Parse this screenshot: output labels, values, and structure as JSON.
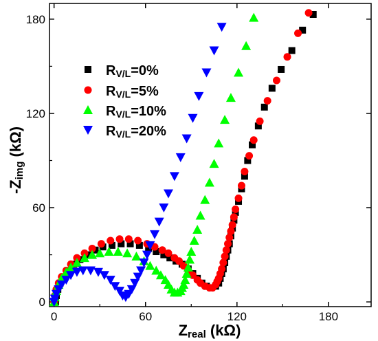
{
  "chart_data": {
    "type": "scatter",
    "x_axis": {
      "label_main": "Z",
      "label_sub": "real",
      "label_unit": " (kΩ)",
      "ticks": [
        "0",
        "60",
        "120",
        "180"
      ],
      "tick_values": [
        0,
        60,
        120,
        180
      ],
      "range": [
        -3,
        208
      ]
    },
    "y_axis": {
      "label_main": "-Z",
      "label_sub": "img",
      "label_unit": " (kΩ)",
      "ticks": [
        "0",
        "60",
        "120",
        "180"
      ],
      "tick_values": [
        0,
        60,
        120,
        180
      ],
      "range": [
        -3,
        190
      ]
    },
    "grid": false,
    "legend_position": "top-left",
    "series": [
      {
        "name_main": "R",
        "name_sub": "V/L",
        "name_rest": "=0%",
        "marker": "square",
        "color": "#000000",
        "points": [
          [
            1,
            0
          ],
          [
            1.5,
            4
          ],
          [
            2.5,
            8
          ],
          [
            4,
            12
          ],
          [
            6,
            16
          ],
          [
            9,
            20
          ],
          [
            13,
            24
          ],
          [
            17,
            27
          ],
          [
            22,
            30
          ],
          [
            27,
            33
          ],
          [
            32,
            35
          ],
          [
            38,
            36
          ],
          [
            44,
            37
          ],
          [
            50,
            37
          ],
          [
            56,
            36
          ],
          [
            62,
            34
          ],
          [
            67,
            32
          ],
          [
            72,
            30
          ],
          [
            76,
            28
          ],
          [
            80,
            26
          ],
          [
            84,
            24
          ],
          [
            88,
            21
          ],
          [
            91,
            18
          ],
          [
            94,
            15
          ],
          [
            97,
            12
          ],
          [
            100,
            10
          ],
          [
            103,
            9
          ],
          [
            106,
            10
          ],
          [
            108,
            12
          ],
          [
            109,
            15
          ],
          [
            110,
            18
          ],
          [
            111,
            21
          ],
          [
            112,
            25
          ],
          [
            113,
            29
          ],
          [
            114,
            33
          ],
          [
            115,
            37
          ],
          [
            116,
            42
          ],
          [
            117,
            47
          ],
          [
            118,
            52
          ],
          [
            119,
            57
          ],
          [
            121,
            64
          ],
          [
            123,
            72
          ],
          [
            125,
            80
          ],
          [
            127,
            90
          ],
          [
            130,
            100
          ],
          [
            134,
            112
          ],
          [
            138,
            124
          ],
          [
            143,
            136
          ],
          [
            149,
            148
          ],
          [
            156,
            160
          ],
          [
            163,
            173
          ],
          [
            170,
            183
          ]
        ]
      },
      {
        "name_main": "R",
        "name_sub": "V/L",
        "name_rest": "=5%",
        "marker": "circle",
        "color": "#ff0000",
        "points": [
          [
            0,
            0
          ],
          [
            0.5,
            4
          ],
          [
            1.5,
            8
          ],
          [
            3,
            12
          ],
          [
            5,
            16
          ],
          [
            8,
            20
          ],
          [
            11,
            24
          ],
          [
            15,
            28
          ],
          [
            20,
            31
          ],
          [
            25,
            34
          ],
          [
            31,
            37
          ],
          [
            37,
            39
          ],
          [
            43,
            40
          ],
          [
            49,
            40
          ],
          [
            55,
            39
          ],
          [
            61,
            37
          ],
          [
            66,
            35
          ],
          [
            71,
            33
          ],
          [
            75,
            31
          ],
          [
            79,
            28
          ],
          [
            82,
            26
          ],
          [
            85,
            23
          ],
          [
            88,
            20
          ],
          [
            91,
            17
          ],
          [
            94,
            14
          ],
          [
            96,
            12
          ],
          [
            99,
            10
          ],
          [
            102,
            9
          ],
          [
            104,
            9
          ],
          [
            106,
            11
          ],
          [
            107,
            13
          ],
          [
            108,
            15
          ],
          [
            109,
            18
          ],
          [
            110,
            21
          ],
          [
            111,
            25
          ],
          [
            112,
            29
          ],
          [
            113,
            33
          ],
          [
            114,
            37
          ],
          [
            115,
            41
          ],
          [
            116,
            45
          ],
          [
            117,
            49
          ],
          [
            118,
            54
          ],
          [
            119,
            59
          ],
          [
            121,
            66
          ],
          [
            123,
            74
          ],
          [
            125,
            83
          ],
          [
            128,
            93
          ],
          [
            131,
            103
          ],
          [
            135,
            115
          ],
          [
            140,
            128
          ],
          [
            146,
            141
          ],
          [
            153,
            156
          ],
          [
            160,
            171
          ],
          [
            167,
            184
          ]
        ]
      },
      {
        "name_main": "R",
        "name_sub": "V/L",
        "name_rest": "=10%",
        "marker": "triangle-up",
        "color": "#00ff00",
        "points": [
          [
            0,
            0
          ],
          [
            0.5,
            3
          ],
          [
            1.5,
            7
          ],
          [
            3,
            11
          ],
          [
            5,
            15
          ],
          [
            8,
            19
          ],
          [
            11,
            22
          ],
          [
            15,
            25
          ],
          [
            20,
            28
          ],
          [
            25,
            30
          ],
          [
            30,
            31
          ],
          [
            36,
            32
          ],
          [
            42,
            32
          ],
          [
            48,
            31
          ],
          [
            54,
            29
          ],
          [
            59,
            26
          ],
          [
            63,
            23
          ],
          [
            67,
            20
          ],
          [
            70,
            17
          ],
          [
            73,
            14
          ],
          [
            75,
            11
          ],
          [
            77,
            8
          ],
          [
            79,
            6
          ],
          [
            81,
            6
          ],
          [
            83,
            7
          ],
          [
            84,
            9
          ],
          [
            85,
            11
          ],
          [
            86,
            14
          ],
          [
            87,
            18
          ],
          [
            88,
            22
          ],
          [
            89,
            27
          ],
          [
            90,
            32
          ],
          [
            92,
            39
          ],
          [
            94,
            46
          ],
          [
            96,
            55
          ],
          [
            99,
            65
          ],
          [
            102,
            76
          ],
          [
            105,
            88
          ],
          [
            108,
            101
          ],
          [
            112,
            116
          ],
          [
            116,
            130
          ],
          [
            121,
            146
          ],
          [
            126,
            163
          ],
          [
            131,
            181
          ]
        ]
      },
      {
        "name_main": "R",
        "name_sub": "V/L",
        "name_rest": "=20%",
        "marker": "triangle-down",
        "color": "#0000ff",
        "points": [
          [
            0,
            0
          ],
          [
            0.5,
            2
          ],
          [
            1.5,
            5
          ],
          [
            3,
            8
          ],
          [
            5,
            11
          ],
          [
            8,
            14
          ],
          [
            11,
            17
          ],
          [
            15,
            19
          ],
          [
            19,
            20
          ],
          [
            24,
            20
          ],
          [
            29,
            19
          ],
          [
            33,
            17
          ],
          [
            37,
            14
          ],
          [
            40,
            10
          ],
          [
            43,
            7
          ],
          [
            45,
            4
          ],
          [
            47,
            3
          ],
          [
            49,
            5
          ],
          [
            51,
            8
          ],
          [
            53,
            12
          ],
          [
            55,
            16
          ],
          [
            57,
            20
          ],
          [
            59,
            25
          ],
          [
            61,
            30
          ],
          [
            63,
            36
          ],
          [
            66,
            43
          ],
          [
            69,
            51
          ],
          [
            72,
            60
          ],
          [
            75,
            69
          ],
          [
            79,
            80
          ],
          [
            83,
            92
          ],
          [
            87,
            104
          ],
          [
            91,
            117
          ],
          [
            95,
            131
          ],
          [
            100,
            146
          ],
          [
            105,
            160
          ],
          [
            110,
            175
          ]
        ]
      }
    ]
  }
}
